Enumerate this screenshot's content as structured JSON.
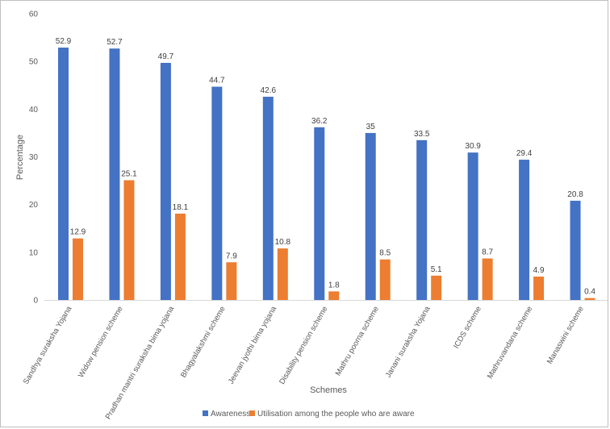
{
  "chart_data": {
    "type": "bar",
    "title": "",
    "xlabel": "Schemes",
    "ylabel": "Percentage",
    "ylim": [
      0,
      60
    ],
    "yticks": [
      0,
      10,
      20,
      30,
      40,
      50,
      60
    ],
    "grid": false,
    "legend_position": "bottom",
    "categories": [
      "Sandhya suraksha Yojana",
      "Widow pension scheme",
      "Pradhan mantri suraksha bima yojana",
      "Bhagyalakshmi scheme",
      "Jeevan jyothi bima yojana",
      "Disability pension scheme",
      "Mathru poorna scheme",
      "Janani suraksha Yojana",
      "ICDS scheme",
      "Mathruvandana scheme",
      "Manaswini scheme"
    ],
    "series": [
      {
        "name": "Awareness",
        "color": "#4472c4",
        "values": [
          52.9,
          52.7,
          49.7,
          44.7,
          42.6,
          36.2,
          35,
          33.5,
          30.9,
          29.4,
          20.8
        ],
        "labels": [
          "52.9",
          "52.7",
          "49.7",
          "44.7",
          "42.6",
          "36.2",
          "35",
          "33.5",
          "30.9",
          "29.4",
          "20.8"
        ]
      },
      {
        "name": "Utilisation among the people who are aware",
        "color": "#ed7d31",
        "values": [
          12.9,
          25.1,
          18.1,
          7.9,
          10.8,
          1.8,
          8.5,
          5.1,
          8.7,
          4.9,
          0.4
        ],
        "labels": [
          "12.9",
          "25.1",
          "18.1",
          "7.9",
          "10.8",
          "1.8",
          "8.5",
          "5.1",
          "8.7",
          "4.9",
          "0.4"
        ]
      }
    ]
  }
}
